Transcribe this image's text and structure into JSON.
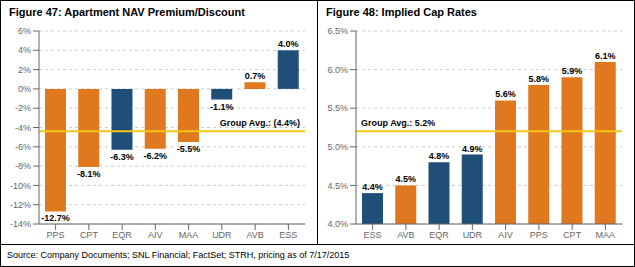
{
  "chart_data": [
    {
      "type": "bar",
      "title": "Figure 47: Apartment NAV Premium/Discount",
      "categories": [
        "PPS",
        "CPT",
        "EQR",
        "AIV",
        "MAA",
        "UDR",
        "AVB",
        "ESS"
      ],
      "values": [
        -12.7,
        -8.1,
        -6.3,
        -6.2,
        -5.5,
        -1.1,
        0.7,
        4.0
      ],
      "value_labels": [
        "-12.7%",
        "-8.1%",
        "-6.3%",
        "-6.2%",
        "-5.5%",
        "-1.1%",
        "0.7%",
        "4.0%"
      ],
      "colors": [
        "#E07820",
        "#E07820",
        "#1F4E79",
        "#E07820",
        "#E07820",
        "#1F4E79",
        "#E07820",
        "#1F4E79"
      ],
      "ylim": [
        -14,
        6
      ],
      "yticks": [
        {
          "value": -14,
          "label": "-14%"
        },
        {
          "value": -12,
          "label": "-12%"
        },
        {
          "value": -10,
          "label": "-10%"
        },
        {
          "value": -8,
          "label": "-8%"
        },
        {
          "value": -6,
          "label": "-6%"
        },
        {
          "value": -4,
          "label": "-4%"
        },
        {
          "value": -2,
          "label": "-2%"
        },
        {
          "value": 0,
          "label": "0%"
        },
        {
          "value": 2,
          "label": "2%"
        },
        {
          "value": 4,
          "label": "4%"
        },
        {
          "value": 6,
          "label": "6%"
        }
      ],
      "grid": true,
      "data_labels": true,
      "annotations": [
        {
          "type": "hline",
          "value": -4.4,
          "label": "Group Avg.: (4.4%)",
          "color": "#F5C518"
        }
      ]
    },
    {
      "type": "bar",
      "title": "Figure 48: Implied Cap Rates",
      "categories": [
        "ESS",
        "AVB",
        "EQR",
        "UDR",
        "AIV",
        "PPS",
        "CPT",
        "MAA"
      ],
      "values": [
        4.4,
        4.5,
        4.8,
        4.9,
        5.6,
        5.8,
        5.9,
        6.1
      ],
      "value_labels": [
        "4.4%",
        "4.5%",
        "4.8%",
        "4.9%",
        "5.6%",
        "5.8%",
        "5.9%",
        "6.1%"
      ],
      "colors": [
        "#1F4E79",
        "#E07820",
        "#1F4E79",
        "#1F4E79",
        "#E07820",
        "#E07820",
        "#E07820",
        "#E07820"
      ],
      "ylim": [
        4.0,
        6.5
      ],
      "yticks": [
        {
          "value": 4.0,
          "label": "4.0%"
        },
        {
          "value": 4.5,
          "label": "4.5%"
        },
        {
          "value": 5.0,
          "label": "5.0%"
        },
        {
          "value": 5.5,
          "label": "5.5%"
        },
        {
          "value": 6.0,
          "label": "6.0%"
        },
        {
          "value": 6.5,
          "label": "6.5%"
        }
      ],
      "grid": true,
      "data_labels": true,
      "annotations": [
        {
          "type": "hline",
          "value": 5.2,
          "label": "Group Avg.: 5.2%",
          "color": "#F5C518"
        }
      ]
    }
  ],
  "source": "Source: Company Documents; SNL Financial; FactSet; STRH, pricing as of 7/17/2015"
}
